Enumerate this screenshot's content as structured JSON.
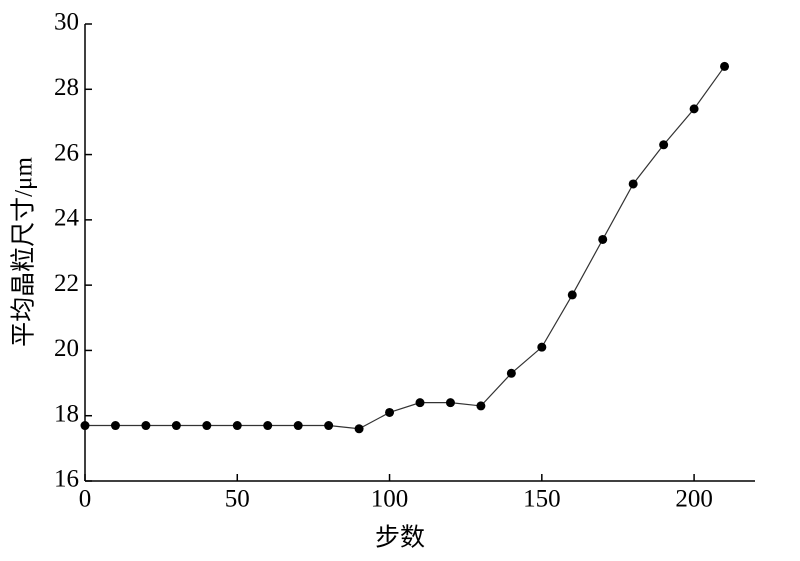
{
  "chart_data": {
    "type": "line",
    "x_label": "步数",
    "y_label": "平均晶粒尺寸/μm",
    "x": [
      0,
      10,
      20,
      30,
      40,
      50,
      60,
      70,
      80,
      90,
      100,
      110,
      120,
      130,
      140,
      150,
      160,
      170,
      180,
      190,
      200,
      210
    ],
    "series": [
      {
        "color": "#000000",
        "values": [
          17.7,
          17.7,
          17.7,
          17.7,
          17.7,
          17.7,
          17.7,
          17.7,
          17.7,
          17.6,
          18.1,
          18.4,
          18.4,
          18.3,
          19.3,
          20.1,
          21.7,
          23.4,
          25.1,
          26.3,
          27.4,
          28.7
        ]
      }
    ],
    "xlim": [
      0,
      220
    ],
    "xticks": [
      0,
      50,
      100,
      150,
      200
    ],
    "ylim": [
      16,
      30
    ],
    "yticks": [
      16,
      18,
      20,
      22,
      24,
      26,
      28,
      30
    ]
  }
}
